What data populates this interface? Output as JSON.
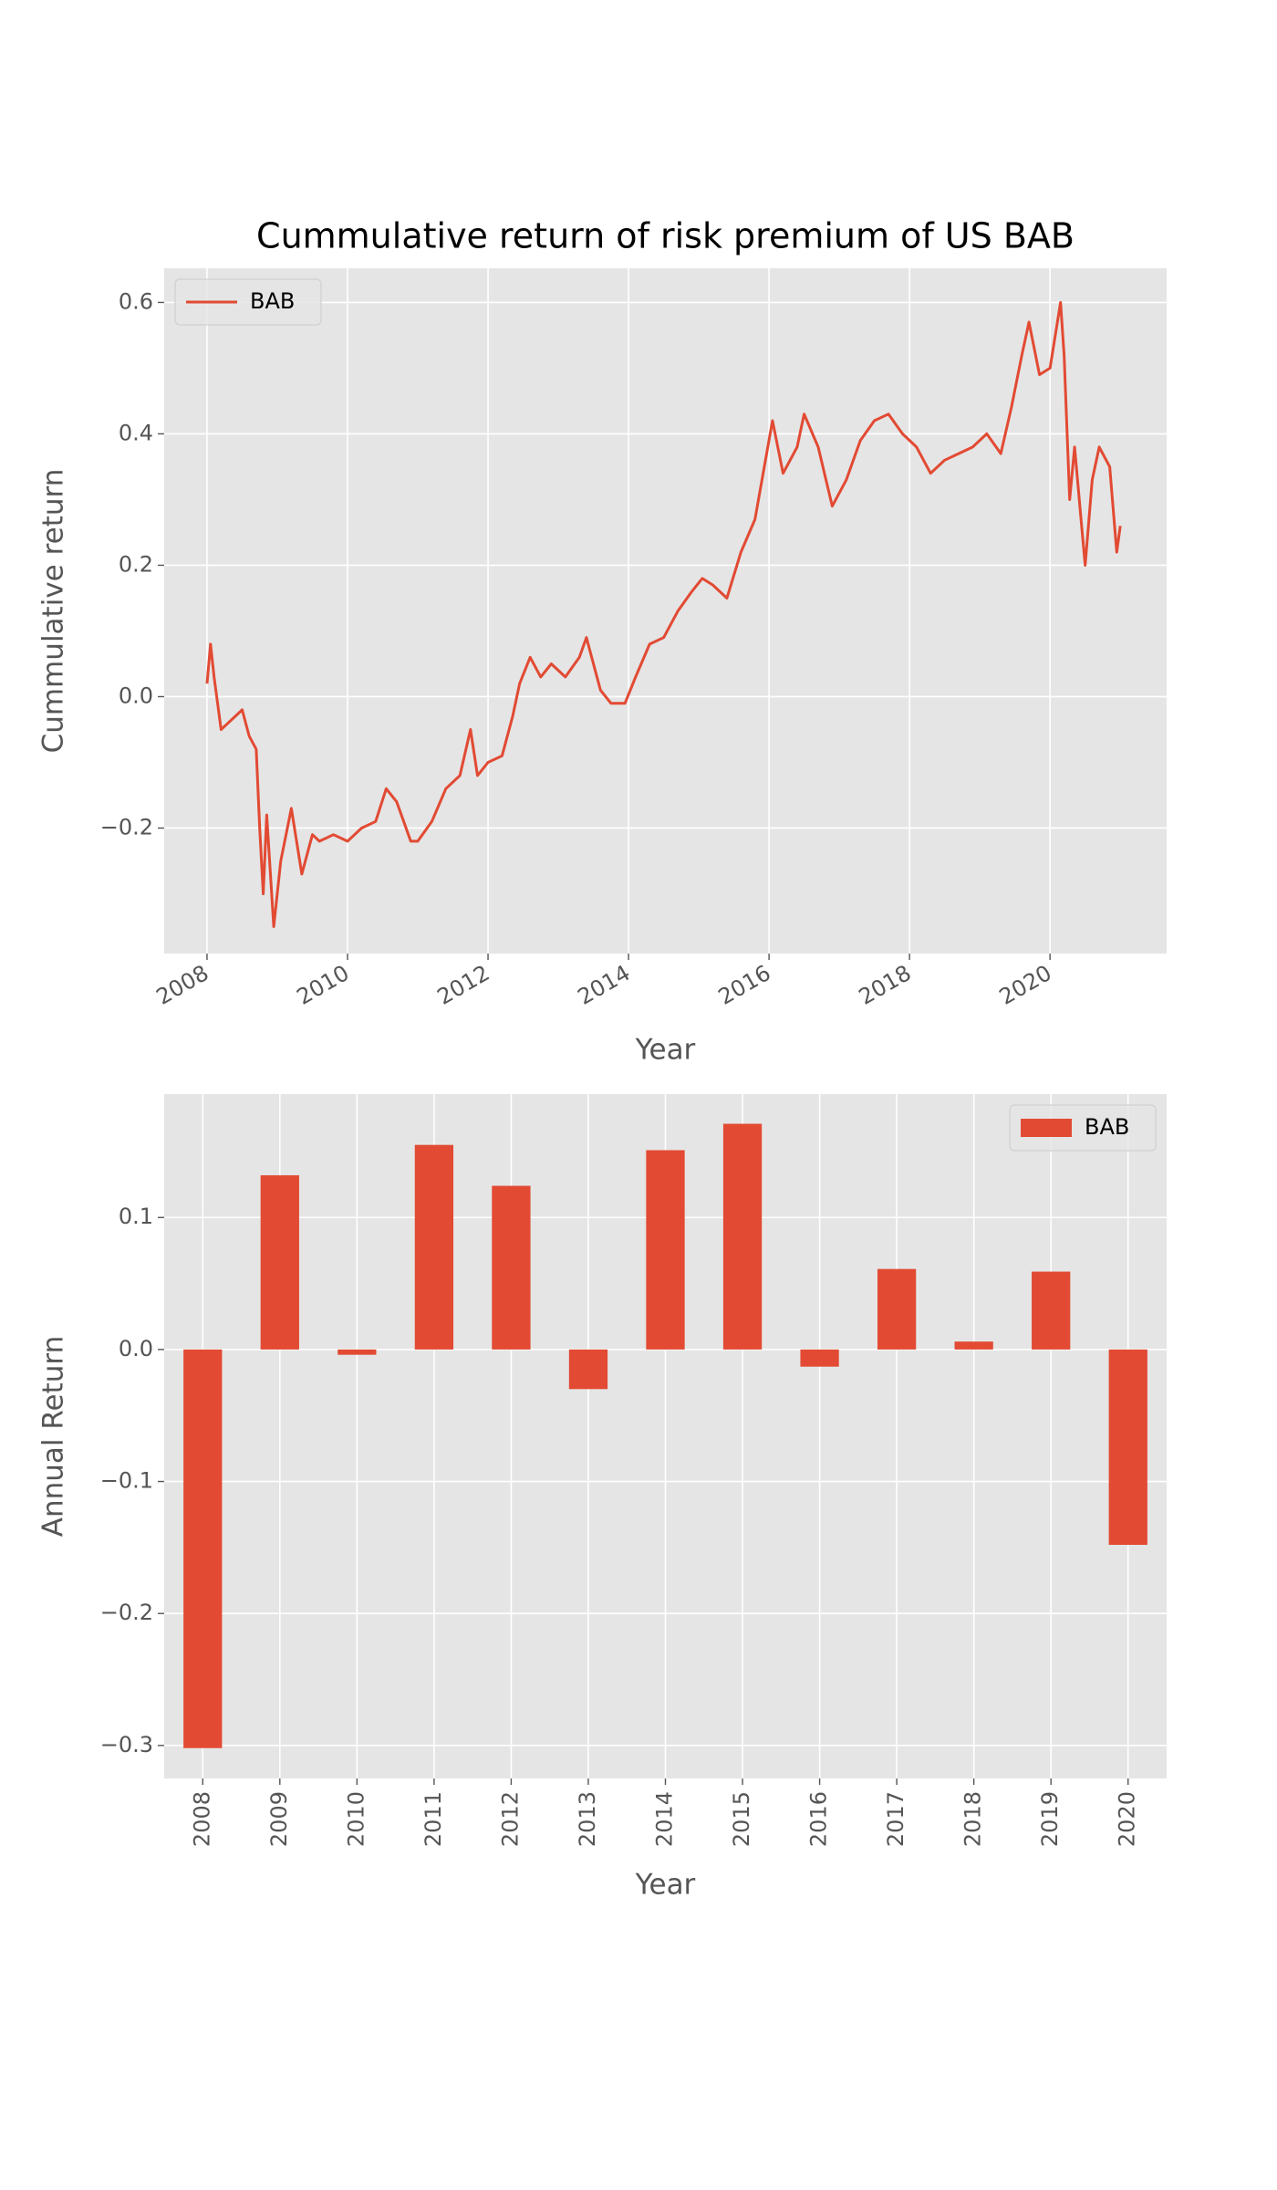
{
  "chart_data": [
    {
      "type": "line",
      "title": "Cummulative return of risk premium of US BAB",
      "x_label": "Year",
      "y_label": "Cummulative return",
      "x": [
        2008.0,
        2008.05,
        2008.1,
        2008.2,
        2008.3,
        2008.5,
        2008.6,
        2008.7,
        2008.75,
        2008.8,
        2008.85,
        2008.95,
        2009.05,
        2009.2,
        2009.35,
        2009.5,
        2009.6,
        2009.8,
        2010.0,
        2010.2,
        2010.4,
        2010.55,
        2010.7,
        2010.9,
        2011.0,
        2011.2,
        2011.4,
        2011.6,
        2011.75,
        2011.85,
        2012.0,
        2012.2,
        2012.35,
        2012.45,
        2012.6,
        2012.75,
        2012.9,
        2013.1,
        2013.3,
        2013.4,
        2013.5,
        2013.6,
        2013.75,
        2013.95,
        2014.1,
        2014.3,
        2014.5,
        2014.7,
        2014.9,
        2015.05,
        2015.2,
        2015.4,
        2015.6,
        2015.8,
        2015.95,
        2016.05,
        2016.2,
        2016.4,
        2016.5,
        2016.7,
        2016.9,
        2017.1,
        2017.3,
        2017.5,
        2017.7,
        2017.9,
        2018.1,
        2018.3,
        2018.5,
        2018.7,
        2018.9,
        2019.1,
        2019.3,
        2019.45,
        2019.6,
        2019.7,
        2019.85,
        2020.0,
        2020.15,
        2020.2,
        2020.28,
        2020.35,
        2020.45,
        2020.5,
        2020.6,
        2020.7,
        2020.85,
        2020.95,
        2021.0
      ],
      "series": [
        {
          "name": "BAB",
          "color": "#E24A33",
          "values": [
            0.02,
            0.08,
            0.03,
            -0.05,
            -0.04,
            -0.02,
            -0.06,
            -0.08,
            -0.2,
            -0.3,
            -0.18,
            -0.35,
            -0.25,
            -0.17,
            -0.27,
            -0.21,
            -0.22,
            -0.21,
            -0.22,
            -0.2,
            -0.19,
            -0.14,
            -0.16,
            -0.22,
            -0.22,
            -0.19,
            -0.14,
            -0.12,
            -0.05,
            -0.12,
            -0.1,
            -0.09,
            -0.03,
            0.02,
            0.06,
            0.03,
            0.05,
            0.03,
            0.06,
            0.09,
            0.05,
            0.01,
            -0.01,
            -0.01,
            0.03,
            0.08,
            0.09,
            0.13,
            0.16,
            0.18,
            0.17,
            0.15,
            0.22,
            0.27,
            0.36,
            0.42,
            0.34,
            0.38,
            0.43,
            0.38,
            0.29,
            0.33,
            0.39,
            0.42,
            0.43,
            0.4,
            0.38,
            0.34,
            0.36,
            0.37,
            0.38,
            0.4,
            0.37,
            0.44,
            0.52,
            0.57,
            0.49,
            0.5,
            0.6,
            0.52,
            0.3,
            0.38,
            0.26,
            0.2,
            0.33,
            0.38,
            0.35,
            0.22,
            0.26
          ]
        }
      ],
      "xlim": [
        2007.39,
        2021.66
      ],
      "xticks": [
        2008,
        2010,
        2012,
        2014,
        2016,
        2018,
        2020
      ],
      "ylim": [
        -0.391,
        0.652
      ],
      "yticks": [
        {
          "value": -0.2,
          "label": "−0.2"
        },
        {
          "value": 0,
          "label": "0.0"
        },
        0.2,
        0.4,
        0.6
      ],
      "grid": true,
      "legend": "upper left"
    },
    {
      "type": "bar",
      "x_label": "Year",
      "y_label": "Annual Return",
      "categories": [
        "2008",
        "2009",
        "2010",
        "2011",
        "2012",
        "2013",
        "2014",
        "2015",
        "2016",
        "2017",
        "2018",
        "2019",
        "2020"
      ],
      "series": [
        {
          "name": "BAB",
          "color": "#E24A33",
          "values": [
            -0.302,
            0.132,
            -0.004,
            0.155,
            0.124,
            -0.03,
            0.151,
            0.171,
            -0.013,
            0.061,
            0.006,
            0.059,
            -0.148
          ]
        }
      ],
      "ylim": [
        -0.325,
        0.1935
      ],
      "yticks": [
        {
          "value": -0.3,
          "label": "−0.3"
        },
        {
          "value": -0.2,
          "label": "−0.2"
        },
        {
          "value": -0.1,
          "label": "−0.1"
        },
        {
          "value": 0,
          "label": "0.0"
        },
        0.1
      ],
      "grid": true,
      "legend": "upper right"
    }
  ]
}
